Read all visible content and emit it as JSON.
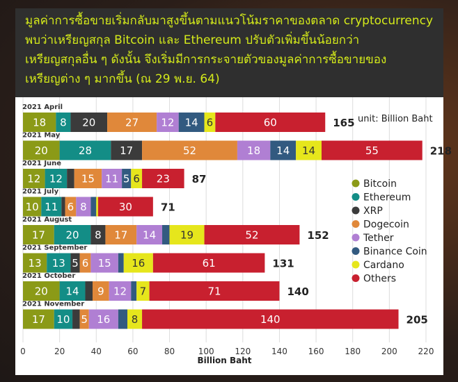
{
  "header": {
    "lines": [
      "มูลค่าการซื้อขายเริ่มกลับมาสูงขึ้นตามแนวโน้มราคาของตลาด cryptocurrency",
      "พบว่าเหรียญสกุล Bitcoin และ Ethereum ปรับตัวเพิ่มขึ้นน้อยกว่า",
      "เหรียญสกุลอื่น ๆ ดังนั้น จึงเริ่มมีการกระจายตัวของมูลค่าการซื้อขายของ",
      "เหรียญต่าง ๆ มากขึ้น (ณ 29 พ.ย. 64)"
    ]
  },
  "chart_data": {
    "type": "bar",
    "orientation": "horizontal",
    "stacked": true,
    "unit_label": "unit: Billion Baht",
    "xlabel": "Billion Baht",
    "xlim": [
      0,
      220
    ],
    "xticks": [
      0,
      20,
      40,
      60,
      80,
      100,
      120,
      140,
      160,
      180,
      200,
      220
    ],
    "grid": true,
    "legend_position": "right",
    "categories": [
      "2021 April",
      "2021 May",
      "2021 June",
      "2021 July",
      "2021 August",
      "2021 September",
      "2021 October",
      "2021 November"
    ],
    "totals": [
      165,
      218,
      87,
      71,
      152,
      131,
      140,
      205
    ],
    "series": [
      {
        "name": "Bitcoin",
        "color": "#8b9a17",
        "label_color": "#ffffff",
        "values": [
          18,
          20,
          12,
          10,
          17,
          13,
          20,
          17
        ]
      },
      {
        "name": "Ethereum",
        "color": "#138d86",
        "label_color": "#ffffff",
        "values": [
          8,
          28,
          12,
          11,
          20,
          13,
          14,
          10
        ]
      },
      {
        "name": "XRP",
        "color": "#3b3b3b",
        "label_color": "#ffffff",
        "values": [
          20,
          17,
          4,
          2,
          8,
          5,
          4,
          4
        ]
      },
      {
        "name": "Dogecoin",
        "color": "#e0883a",
        "label_color": "#ffffff",
        "values": [
          27,
          52,
          15,
          6,
          17,
          6,
          9,
          5
        ]
      },
      {
        "name": "Tether",
        "color": "#b07fd3",
        "label_color": "#ffffff",
        "values": [
          12,
          18,
          11,
          8,
          14,
          15,
          12,
          16
        ]
      },
      {
        "name": "Binance Coin",
        "color": "#325a80",
        "label_color": "#ffffff",
        "values": [
          14,
          14,
          5,
          3,
          4,
          3,
          3,
          5
        ]
      },
      {
        "name": "Cardano",
        "color": "#e6e61c",
        "label_color": "#333333",
        "values": [
          6,
          14,
          6,
          1,
          19,
          16,
          7,
          8
        ]
      },
      {
        "name": "Others",
        "color": "#c8202f",
        "label_color": "#ffffff",
        "values": [
          60,
          55,
          23,
          30,
          52,
          61,
          71,
          140
        ]
      }
    ],
    "data_labels": [
      [
        "18",
        "8",
        "20",
        "27",
        "12",
        "14",
        "6",
        "60"
      ],
      [
        "20",
        "28",
        "17",
        "52",
        "18",
        "14",
        "14",
        "55"
      ],
      [
        "12",
        "12",
        "",
        "15",
        "11",
        "5",
        "6",
        "23"
      ],
      [
        "10",
        "11",
        "",
        "6",
        "8",
        "",
        "",
        "30"
      ],
      [
        "17",
        "20",
        "8",
        "17",
        "14",
        "",
        "19",
        "52"
      ],
      [
        "13",
        "13",
        "5",
        "6",
        "15",
        "",
        "16",
        "61"
      ],
      [
        "20",
        "14",
        "",
        "9",
        "12",
        "",
        "7",
        "71"
      ],
      [
        "17",
        "10",
        "",
        "5",
        "16",
        "",
        "8",
        "140"
      ]
    ]
  }
}
